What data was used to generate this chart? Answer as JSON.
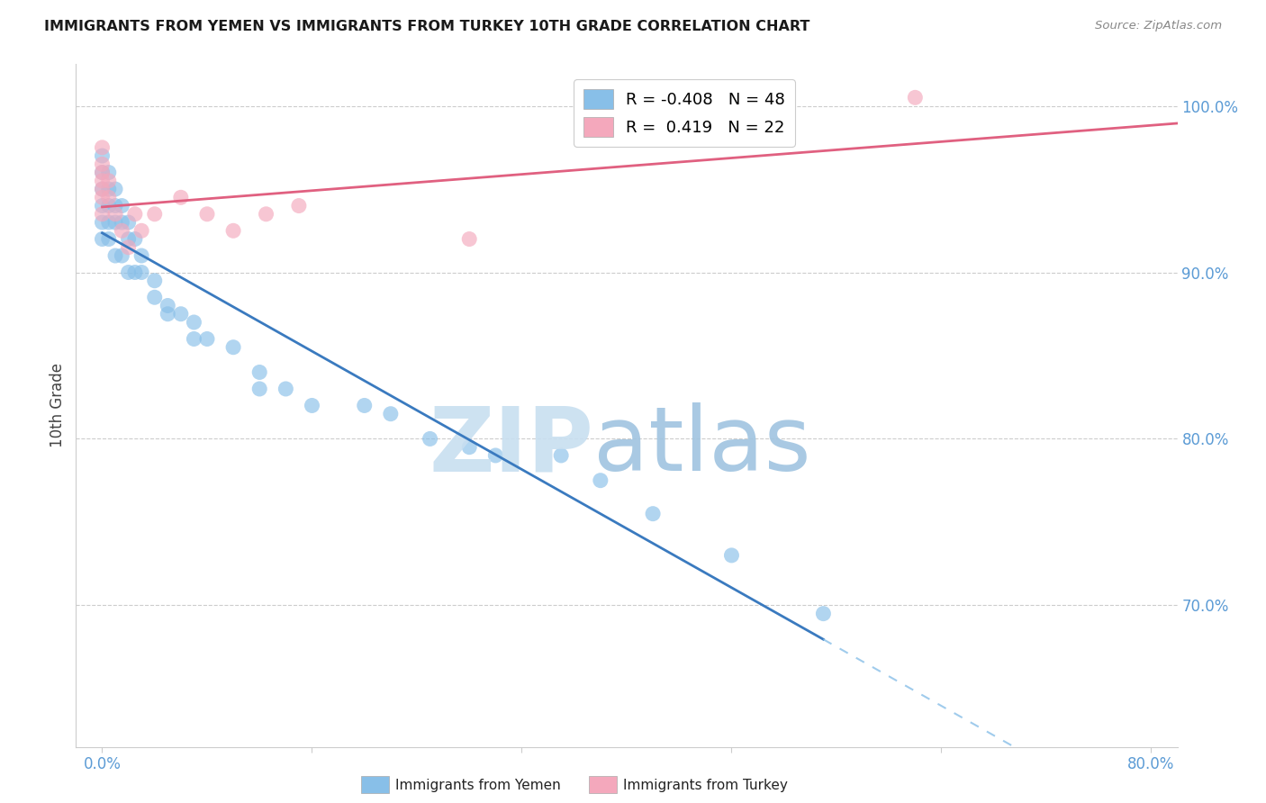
{
  "title": "IMMIGRANTS FROM YEMEN VS IMMIGRANTS FROM TURKEY 10TH GRADE CORRELATION CHART",
  "source": "Source: ZipAtlas.com",
  "ylabel": "10th Grade",
  "legend_blue_r": "-0.408",
  "legend_blue_n": "48",
  "legend_pink_r": "0.419",
  "legend_pink_n": "22",
  "blue_color": "#88bfe8",
  "blue_line_color": "#3a7abf",
  "pink_color": "#f4a8bc",
  "pink_line_color": "#e06080",
  "blue_scatter_x": [
    0.0,
    0.0,
    0.0,
    0.0,
    0.0,
    0.0,
    0.005,
    0.005,
    0.005,
    0.005,
    0.005,
    0.01,
    0.01,
    0.01,
    0.01,
    0.015,
    0.015,
    0.015,
    0.02,
    0.02,
    0.02,
    0.025,
    0.025,
    0.03,
    0.03,
    0.04,
    0.04,
    0.05,
    0.05,
    0.06,
    0.07,
    0.07,
    0.08,
    0.1,
    0.12,
    0.12,
    0.14,
    0.16,
    0.2,
    0.22,
    0.25,
    0.28,
    0.3,
    0.35,
    0.38,
    0.42,
    0.48,
    0.55
  ],
  "blue_scatter_y": [
    0.97,
    0.96,
    0.95,
    0.94,
    0.93,
    0.92,
    0.96,
    0.95,
    0.94,
    0.93,
    0.92,
    0.95,
    0.94,
    0.93,
    0.91,
    0.94,
    0.93,
    0.91,
    0.93,
    0.92,
    0.9,
    0.92,
    0.9,
    0.91,
    0.9,
    0.895,
    0.885,
    0.88,
    0.875,
    0.875,
    0.87,
    0.86,
    0.86,
    0.855,
    0.84,
    0.83,
    0.83,
    0.82,
    0.82,
    0.815,
    0.8,
    0.795,
    0.79,
    0.79,
    0.775,
    0.755,
    0.73,
    0.695
  ],
  "pink_scatter_x": [
    0.0,
    0.0,
    0.0,
    0.0,
    0.0,
    0.0,
    0.0,
    0.005,
    0.005,
    0.01,
    0.015,
    0.02,
    0.025,
    0.03,
    0.04,
    0.06,
    0.08,
    0.1,
    0.125,
    0.15,
    0.28,
    0.62
  ],
  "pink_scatter_y": [
    0.975,
    0.965,
    0.96,
    0.955,
    0.95,
    0.945,
    0.935,
    0.955,
    0.945,
    0.935,
    0.925,
    0.915,
    0.935,
    0.925,
    0.935,
    0.945,
    0.935,
    0.925,
    0.935,
    0.94,
    0.92,
    1.005
  ],
  "xlim": [
    -0.02,
    0.82
  ],
  "ylim": [
    0.615,
    1.025
  ],
  "xtick_positions": [
    0.0,
    0.16,
    0.32,
    0.48,
    0.64,
    0.8
  ],
  "xtick_labels_show": [
    "0.0%",
    "",
    "",
    "",
    "",
    "80.0%"
  ],
  "ytick_positions": [
    1.0,
    0.9,
    0.8,
    0.7
  ],
  "ytick_labels": [
    "100.0%",
    "90.0%",
    "80.0%",
    "70.0%"
  ],
  "tick_color": "#5b9bd5",
  "grid_color": "#cccccc",
  "watermark_zip_color": "#c8dff0",
  "watermark_atlas_color": "#a0c4e0"
}
